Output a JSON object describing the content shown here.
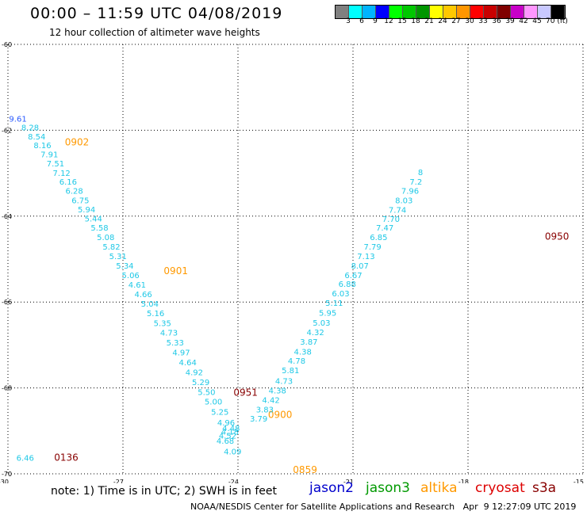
{
  "header": {
    "title": "00:00 – 11:59 UTC 04/08/2019",
    "subtitle": "12 hour collection of altimeter wave heights"
  },
  "colorbar": {
    "colors": [
      "#808080",
      "#00ffff",
      "#00b4ff",
      "#0000ff",
      "#00ff00",
      "#00c800",
      "#009600",
      "#ffff00",
      "#ffc800",
      "#ff9600",
      "#ff0000",
      "#c80000",
      "#800000",
      "#c800c8",
      "#ff96ff",
      "#c8c8ff",
      "#000000"
    ],
    "labels": [
      "3",
      "6",
      "9",
      "12",
      "15",
      "18",
      "21",
      "24",
      "27",
      "30",
      "33",
      "36",
      "39",
      "42",
      "45",
      "70 (ft)"
    ]
  },
  "footer": {
    "note": "note: 1) Time is in UTC; 2) SWH is in feet",
    "missions": [
      {
        "name": "jason2",
        "color": "#0000cc"
      },
      {
        "name": "jason3",
        "color": "#009900"
      },
      {
        "name": "altika",
        "color": "#ff9900"
      },
      {
        "name": "cryosat",
        "color": "#dd0000"
      },
      {
        "name": "s3a",
        "color": "#880000"
      }
    ],
    "credit": "NOAA/NESDIS Center for Satellite Applications and Research   Apr  9 12:27:09 UTC 2019"
  },
  "chart_data": {
    "type": "scatter",
    "title": "00:00 – 11:59 UTC 04/08/2019",
    "subtitle": "12 hour collection of altimeter wave heights",
    "xlim": [
      -30,
      -15
    ],
    "ylim": [
      -70,
      -60
    ],
    "x_ticks": [
      -30,
      -27,
      -24,
      -21,
      -18,
      -15
    ],
    "y_ticks": [
      -60,
      -62,
      -64,
      -66,
      -68,
      -70
    ],
    "grid": true,
    "value_color": "#1ec8e6",
    "series": [
      {
        "name": "altika",
        "points": [
          {
            "x": -29.74,
            "y": -61.8,
            "v": "9.61",
            "color": "#2a5aff"
          },
          {
            "x": -29.42,
            "y": -62.0,
            "v": "8.28"
          },
          {
            "x": -29.25,
            "y": -62.21,
            "v": "8.54"
          },
          {
            "x": -29.1,
            "y": -62.42,
            "v": "8.16"
          },
          {
            "x": -28.92,
            "y": -62.63,
            "v": "7.91"
          },
          {
            "x": -28.76,
            "y": -62.84,
            "v": "7.51"
          },
          {
            "x": -28.6,
            "y": -63.06,
            "v": "7.12"
          },
          {
            "x": -28.43,
            "y": -63.27,
            "v": "6.16"
          },
          {
            "x": -28.27,
            "y": -63.48,
            "v": "6.28"
          },
          {
            "x": -28.11,
            "y": -63.7,
            "v": "6.75"
          },
          {
            "x": -27.95,
            "y": -63.91,
            "v": "5.94"
          },
          {
            "x": -27.77,
            "y": -64.12,
            "v": "5.44"
          },
          {
            "x": -27.61,
            "y": -64.34,
            "v": "5.58"
          },
          {
            "x": -27.45,
            "y": -64.56,
            "v": "5.08"
          },
          {
            "x": -27.3,
            "y": -64.78,
            "v": "5.82"
          },
          {
            "x": -27.13,
            "y": -65.0,
            "v": "5.31"
          },
          {
            "x": -26.95,
            "y": -65.22,
            "v": "5.34"
          },
          {
            "x": -26.8,
            "y": -65.44,
            "v": "5.06"
          },
          {
            "x": -26.63,
            "y": -65.66,
            "v": "4.61"
          },
          {
            "x": -26.47,
            "y": -65.89,
            "v": "4.66"
          },
          {
            "x": -26.3,
            "y": -66.11,
            "v": "5.04"
          },
          {
            "x": -26.15,
            "y": -66.33,
            "v": "5.16"
          },
          {
            "x": -25.97,
            "y": -66.56,
            "v": "5.35"
          },
          {
            "x": -25.8,
            "y": -66.78,
            "v": "4.73"
          },
          {
            "x": -25.64,
            "y": -67.01,
            "v": "5.33"
          },
          {
            "x": -25.48,
            "y": -67.24,
            "v": "4.97"
          },
          {
            "x": -25.31,
            "y": -67.47,
            "v": "4.64"
          },
          {
            "x": -25.14,
            "y": -67.7,
            "v": "4.92"
          },
          {
            "x": -24.97,
            "y": -67.93,
            "v": "5.29"
          },
          {
            "x": -24.82,
            "y": -68.16,
            "v": "5.50"
          },
          {
            "x": -24.64,
            "y": -68.39,
            "v": "5.00"
          },
          {
            "x": -24.47,
            "y": -68.63,
            "v": "5.25"
          },
          {
            "x": -24.31,
            "y": -68.87,
            "v": "4.96"
          },
          {
            "x": -24.21,
            "y": -69.09,
            "v": "4.18"
          },
          {
            "x": -24.18,
            "y": -69.0,
            "v": "4.48"
          },
          {
            "x": -24.27,
            "y": -69.18,
            "v": "4.52"
          },
          {
            "x": -24.33,
            "y": -69.3,
            "v": "4.68"
          },
          {
            "x": -24.14,
            "y": -69.55,
            "v": "4.09"
          },
          {
            "x": -29.55,
            "y": -69.7,
            "v": "6.46"
          }
        ],
        "time_labels": [
          {
            "x": -28.2,
            "y": -62.35,
            "text": "0902",
            "color": "#ff9900"
          },
          {
            "x": -25.62,
            "y": -65.35,
            "text": "0901",
            "color": "#ff9900"
          },
          {
            "x": -22.9,
            "y": -68.7,
            "text": "0900",
            "color": "#ff9900"
          },
          {
            "x": -22.25,
            "y": -69.98,
            "text": "0859",
            "color": "#ff9900"
          },
          {
            "x": -28.48,
            "y": -69.7,
            "text": "0136",
            "color": "#880000"
          }
        ]
      },
      {
        "name": "s3a",
        "points": [
          {
            "x": -23.46,
            "y": -68.78,
            "v": "3.79"
          },
          {
            "x": -23.3,
            "y": -68.57,
            "v": "3.83"
          },
          {
            "x": -23.14,
            "y": -68.35,
            "v": "4.42"
          },
          {
            "x": -22.97,
            "y": -68.13,
            "v": "4.38"
          },
          {
            "x": -22.8,
            "y": -67.91,
            "v": "4.73"
          },
          {
            "x": -22.63,
            "y": -67.66,
            "v": "5.81"
          },
          {
            "x": -22.47,
            "y": -67.44,
            "v": "4.78"
          },
          {
            "x": -22.31,
            "y": -67.22,
            "v": "4.38"
          },
          {
            "x": -22.15,
            "y": -66.99,
            "v": "3.87"
          },
          {
            "x": -21.98,
            "y": -66.77,
            "v": "4.32"
          },
          {
            "x": -21.82,
            "y": -66.55,
            "v": "5.03"
          },
          {
            "x": -21.66,
            "y": -66.32,
            "v": "5.95"
          },
          {
            "x": -21.49,
            "y": -66.09,
            "v": "5.11"
          },
          {
            "x": -21.32,
            "y": -65.87,
            "v": "6.03"
          },
          {
            "x": -21.15,
            "y": -65.65,
            "v": "6.88"
          },
          {
            "x": -20.99,
            "y": -65.44,
            "v": "6.67"
          },
          {
            "x": -20.82,
            "y": -65.22,
            "v": "8.07"
          },
          {
            "x": -20.66,
            "y": -65.0,
            "v": "7.13"
          },
          {
            "x": -20.49,
            "y": -64.78,
            "v": "7.79"
          },
          {
            "x": -20.33,
            "y": -64.56,
            "v": "6.85"
          },
          {
            "x": -20.17,
            "y": -64.34,
            "v": "7.47"
          },
          {
            "x": -20.01,
            "y": -64.13,
            "v": "7.70"
          },
          {
            "x": -19.84,
            "y": -63.92,
            "v": "7.74"
          },
          {
            "x": -19.67,
            "y": -63.7,
            "v": "8.03"
          },
          {
            "x": -19.51,
            "y": -63.48,
            "v": "7.96"
          },
          {
            "x": -19.36,
            "y": -63.27,
            "v": "7.2"
          },
          {
            "x": -19.24,
            "y": -63.04,
            "v": "8"
          }
        ],
        "time_labels": [
          {
            "x": -23.8,
            "y": -68.18,
            "text": "0951",
            "color": "#880000"
          },
          {
            "x": -15.68,
            "y": -64.55,
            "text": "0950",
            "color": "#880000"
          }
        ]
      }
    ]
  }
}
